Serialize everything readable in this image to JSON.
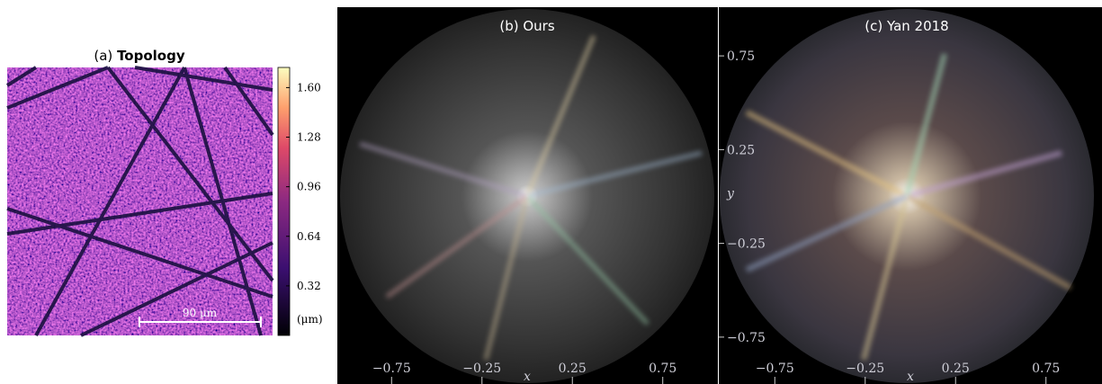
{
  "panels": [
    {
      "label": "(a)",
      "title": "Topology",
      "scale_bar": "90 μm",
      "colorbar": {
        "lim": [
          0,
          1.73
        ],
        "ticks": [
          {
            "value": 1.6,
            "label": "1.60"
          },
          1.28,
          0.96,
          0.64,
          0.32
        ],
        "unit": "(μm)"
      }
    },
    {
      "title": "(b) Ours"
    },
    {
      "title": "(c) Yan 2018"
    }
  ],
  "axes": {
    "xlim": [
      -1.05,
      1.05
    ],
    "ylim": [
      -1,
      1
    ],
    "xticks": [
      {
        "value": -0.75,
        "label": "−0.75"
      },
      {
        "value": -0.25,
        "label": "−0.25"
      },
      0.25,
      0.75
    ],
    "yticks": [
      0.75,
      0.25,
      {
        "value": -0.25,
        "label": "−0.25"
      },
      {
        "value": -0.75,
        "label": "−0.75"
      }
    ],
    "xlabel": "x",
    "ylabel": "y"
  }
}
